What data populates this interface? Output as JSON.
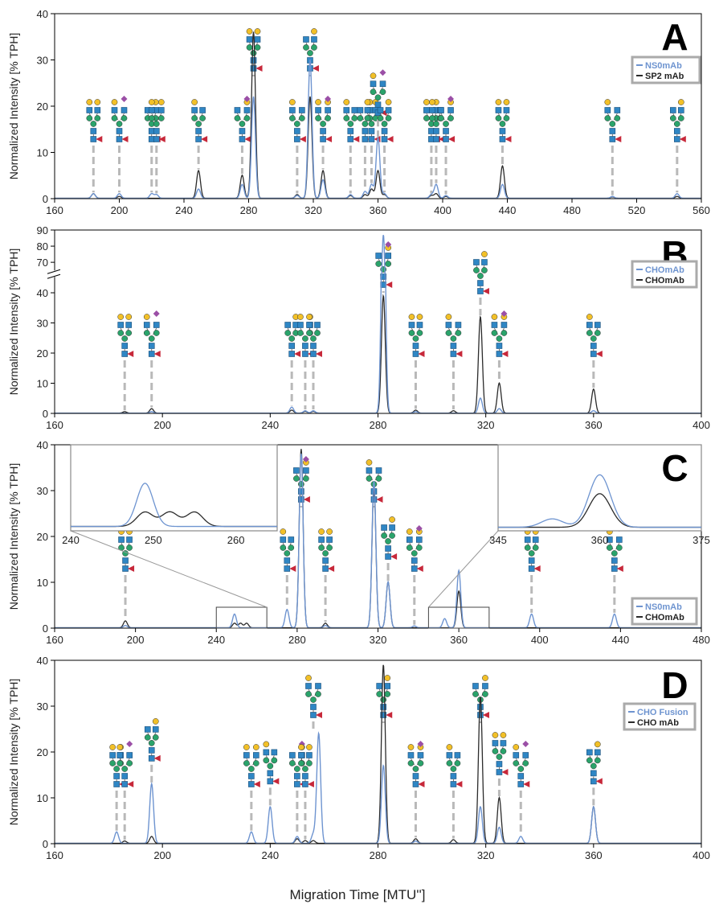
{
  "colors": {
    "blue": "#6e94d0",
    "dark": "#2b2b2b",
    "dash": "#b9b9b9",
    "glycan_blue_square": "#2f86c4",
    "glycan_green_circle": "#2aa36b",
    "glycan_yellow_circle": "#f2c028",
    "glycan_red_triangle": "#c7283a",
    "glycan_purple_diamond": "#9b4fa6"
  },
  "figure_xlabel": "Migration Time [MTU'']",
  "chart_data": [
    {
      "panel": "A",
      "type": "line",
      "ylabel": "Normalized Intensity [% TPH]",
      "xlim": [
        160,
        560
      ],
      "ylim": [
        0,
        40
      ],
      "xticks": [
        160,
        200,
        240,
        280,
        320,
        360,
        400,
        440,
        480,
        520,
        560
      ],
      "yticks": [
        0,
        10,
        20,
        30,
        40
      ],
      "legend": {
        "placement": "top-right",
        "entries": [
          "NS0mAb",
          "SP2 mAb"
        ]
      },
      "series": [
        {
          "name": "NS0mAb",
          "color": "blue",
          "peaks": [
            [
              184,
              1.0
            ],
            [
              200,
              1.0
            ],
            [
              220,
              1.0
            ],
            [
              223,
              0.8
            ],
            [
              249,
              2.0
            ],
            [
              276,
              3.0
            ],
            [
              283,
              22.0
            ],
            [
              310,
              0.6
            ],
            [
              318,
              30.0
            ],
            [
              326,
              4.0
            ],
            [
              343,
              0.8
            ],
            [
              352,
              1.5
            ],
            [
              356,
              3.0
            ],
            [
              360,
              13.0
            ],
            [
              364,
              1.0
            ],
            [
              393,
              0.8
            ],
            [
              396,
              3.0
            ],
            [
              402,
              0.6
            ],
            [
              437,
              3.0
            ],
            [
              505,
              0.4
            ],
            [
              545,
              1.0
            ]
          ]
        },
        {
          "name": "SP2 mAb",
          "color": "dark",
          "peaks": [
            [
              184,
              1.0
            ],
            [
              200,
              0.4
            ],
            [
              249,
              6.0
            ],
            [
              276,
              5.0
            ],
            [
              283,
              36.0
            ],
            [
              310,
              0.8
            ],
            [
              318,
              22.0
            ],
            [
              326,
              6.0
            ],
            [
              343,
              0.6
            ],
            [
              352,
              0.8
            ],
            [
              356,
              2.0
            ],
            [
              360,
              6.0
            ],
            [
              364,
              0.8
            ],
            [
              393,
              0.6
            ],
            [
              396,
              1.0
            ],
            [
              402,
              0.4
            ],
            [
              437,
              7.0
            ],
            [
              505,
              0.3
            ],
            [
              545,
              0.4
            ]
          ]
        }
      ]
    },
    {
      "panel": "B",
      "type": "line",
      "ylabel": "Normalized Intensity [% TPH]",
      "xlim": [
        160,
        400
      ],
      "ylim": [
        0,
        90
      ],
      "axis_break": [
        45,
        65
      ],
      "xticks": [
        160,
        200,
        240,
        280,
        320,
        360,
        400
      ],
      "yticks": [
        0,
        10,
        20,
        30,
        40,
        70,
        80,
        90
      ],
      "legend": {
        "placement": "top-right",
        "entries": [
          "CHOmAb",
          "CHOmAb"
        ]
      },
      "series": [
        {
          "name": "CHOmAb",
          "color": "blue",
          "peaks": [
            [
              196,
              0.5
            ],
            [
              248,
              2.0
            ],
            [
              253,
              0.8
            ],
            [
              256,
              0.8
            ],
            [
              282,
              87.0
            ],
            [
              294,
              0.5
            ],
            [
              318,
              5.0
            ],
            [
              325,
              1.5
            ],
            [
              360,
              0.8
            ]
          ]
        },
        {
          "name": "CHOmAb",
          "color": "dark",
          "peaks": [
            [
              186,
              0.5
            ],
            [
              196,
              1.5
            ],
            [
              248,
              1.0
            ],
            [
              253,
              0.6
            ],
            [
              256,
              0.6
            ],
            [
              282,
              39.0
            ],
            [
              294,
              1.0
            ],
            [
              308,
              0.8
            ],
            [
              318,
              32.0
            ],
            [
              325,
              10.0
            ],
            [
              360,
              8.0
            ]
          ]
        }
      ]
    },
    {
      "panel": "C",
      "type": "line",
      "ylabel": "Normalized Intensity [% TPH]",
      "xlim": [
        160,
        480
      ],
      "ylim": [
        0,
        40
      ],
      "xticks": [
        160,
        200,
        240,
        280,
        320,
        360,
        400,
        440,
        480
      ],
      "yticks": [
        0,
        10,
        20,
        30,
        40
      ],
      "legend": {
        "placement": "bottom-right",
        "entries": [
          "NS0mAb",
          "CHOmAb"
        ]
      },
      "series": [
        {
          "name": "NS0mAb",
          "color": "blue",
          "peaks": [
            [
              195,
              0.5
            ],
            [
              249,
              3.0
            ],
            [
              275,
              4.0
            ],
            [
              282,
              38.0
            ],
            [
              294,
              0.5
            ],
            [
              318,
              32.0
            ],
            [
              325,
              10.0
            ],
            [
              338,
              0.4
            ],
            [
              353,
              2.0
            ],
            [
              360,
              12.5
            ],
            [
              396,
              3.0
            ],
            [
              437,
              3.0
            ]
          ]
        },
        {
          "name": "CHOmAb",
          "color": "dark",
          "peaks": [
            [
              195,
              1.5
            ],
            [
              249,
              1.0
            ],
            [
              252,
              1.0
            ],
            [
              255,
              1.0
            ],
            [
              282,
              39.0
            ],
            [
              294,
              1.0
            ],
            [
              318,
              31.0
            ],
            [
              325,
              10.0
            ],
            [
              360,
              8.0
            ]
          ]
        }
      ],
      "insets": [
        {
          "xlim": [
            240,
            265
          ],
          "xticks": [
            240,
            250,
            260
          ]
        },
        {
          "xlim": [
            345,
            375
          ],
          "xticks": [
            345,
            360,
            375
          ]
        }
      ]
    },
    {
      "panel": "D",
      "type": "line",
      "ylabel": "Normalized Intensity [% TPH]",
      "xlim": [
        160,
        400
      ],
      "ylim": [
        0,
        40
      ],
      "xticks": [
        160,
        200,
        240,
        280,
        320,
        360,
        400
      ],
      "yticks": [
        0,
        10,
        20,
        30,
        40
      ],
      "legend": {
        "placement": "top-right",
        "entries": [
          "CHO Fusion",
          "CHO mAb"
        ]
      },
      "series": [
        {
          "name": "CHO Fusion",
          "color": "blue",
          "peaks": [
            [
              183,
              2.5
            ],
            [
              196,
              13.0
            ],
            [
              233,
              2.5
            ],
            [
              240,
              8.0
            ],
            [
              250,
              1.5
            ],
            [
              256,
              2.0
            ],
            [
              258,
              24.0
            ],
            [
              282,
              17.0
            ],
            [
              294,
              0.5
            ],
            [
              318,
              8.0
            ],
            [
              325,
              3.5
            ],
            [
              333,
              1.5
            ],
            [
              360,
              8.0
            ]
          ]
        },
        {
          "name": "CHO mAb",
          "color": "dark",
          "peaks": [
            [
              186,
              0.5
            ],
            [
              196,
              1.5
            ],
            [
              250,
              1.0
            ],
            [
              253,
              0.6
            ],
            [
              256,
              0.6
            ],
            [
              282,
              39.0
            ],
            [
              294,
              1.0
            ],
            [
              308,
              0.8
            ],
            [
              318,
              32.0
            ],
            [
              325,
              10.0
            ],
            [
              360,
              8.0
            ]
          ]
        }
      ]
    }
  ]
}
